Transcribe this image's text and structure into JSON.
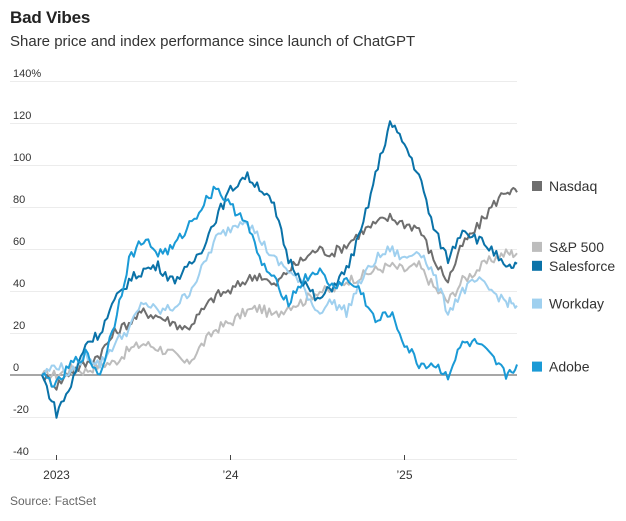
{
  "header": {
    "title": "Bad Vibes",
    "subtitle": "Share price and index performance since launch of ChatGPT"
  },
  "footer": {
    "source": "Source: FactSet"
  },
  "chart_data": {
    "type": "line",
    "title": "Bad Vibes",
    "subtitle": "Share price and index performance since launch of ChatGPT",
    "xlabel": "",
    "ylabel": "",
    "ylim": [
      -40,
      140
    ],
    "yticks": [
      -40,
      -20,
      0,
      20,
      40,
      60,
      80,
      100,
      120,
      140
    ],
    "ytick_labels": [
      "-40",
      "-20",
      "0",
      "20",
      "40",
      "60",
      "80",
      "100",
      "120",
      "140%"
    ],
    "xticks": [
      {
        "label": "2023",
        "month_index": 1
      },
      {
        "label": "’24",
        "month_index": 13
      },
      {
        "label": "’25",
        "month_index": 25
      }
    ],
    "grid": true,
    "legend_position": "right",
    "x": [
      "Dec 2022",
      "Jan 2023",
      "Feb 2023",
      "Mar 2023",
      "Apr 2023",
      "May 2023",
      "Jun 2023",
      "Jul 2023",
      "Aug 2023",
      "Sep 2023",
      "Oct 2023",
      "Nov 2023",
      "Dec 2023",
      "Jan 2024",
      "Feb 2024",
      "Mar 2024",
      "Apr 2024",
      "May 2024",
      "Jun 2024",
      "Jul 2024",
      "Aug 2024",
      "Sep 2024",
      "Oct 2024",
      "Nov 2024",
      "Dec 2024",
      "Jan 2025",
      "Feb 2025",
      "Mar 2025",
      "Apr 2025",
      "May 2025",
      "Jun 2025",
      "Jul 2025",
      "Aug 2025",
      "Aug 2025 (latest)"
    ],
    "series": [
      {
        "name": "Nasdaq",
        "color": "#6e6e6e",
        "values": [
          0,
          -5,
          2,
          5,
          10,
          20,
          25,
          30,
          28,
          25,
          22,
          30,
          38,
          40,
          45,
          48,
          42,
          50,
          55,
          60,
          58,
          62,
          68,
          72,
          75,
          72,
          70,
          55,
          45,
          62,
          70,
          80,
          88,
          87
        ]
      },
      {
        "name": "S&P 500",
        "color": "#bdbdbd",
        "values": [
          0,
          0,
          3,
          2,
          5,
          6,
          12,
          15,
          13,
          10,
          5,
          14,
          22,
          25,
          30,
          32,
          28,
          33,
          35,
          40,
          40,
          45,
          47,
          50,
          52,
          50,
          52,
          42,
          35,
          45,
          50,
          55,
          58,
          58
        ]
      },
      {
        "name": "Salesforce",
        "color": "#0a72a8",
        "values": [
          0,
          -18,
          -5,
          15,
          20,
          35,
          45,
          50,
          52,
          45,
          50,
          60,
          75,
          88,
          95,
          90,
          80,
          55,
          45,
          35,
          42,
          50,
          68,
          95,
          120,
          110,
          95,
          70,
          55,
          70,
          65,
          60,
          50,
          53
        ]
      },
      {
        "name": "Workday",
        "color": "#9fd0ef",
        "values": [
          0,
          5,
          0,
          10,
          5,
          15,
          22,
          35,
          30,
          32,
          38,
          50,
          65,
          70,
          75,
          65,
          55,
          50,
          42,
          30,
          35,
          30,
          45,
          55,
          60,
          55,
          60,
          48,
          30,
          40,
          45,
          40,
          35,
          33
        ]
      },
      {
        "name": "Adobe",
        "color": "#1a9ad6",
        "values": [
          0,
          -5,
          5,
          10,
          0,
          25,
          55,
          65,
          58,
          60,
          70,
          80,
          90,
          80,
          75,
          55,
          45,
          35,
          45,
          50,
          42,
          45,
          40,
          25,
          30,
          15,
          5,
          5,
          0,
          15,
          15,
          8,
          0,
          5
        ]
      }
    ],
    "legend": [
      {
        "name": "Nasdaq",
        "color": "#6e6e6e",
        "anchor_value": 90
      },
      {
        "name": "S&P 500",
        "color": "#bdbdbd",
        "anchor_value": 61
      },
      {
        "name": "Salesforce",
        "color": "#0a72a8",
        "anchor_value": 52
      },
      {
        "name": "Workday",
        "color": "#9fd0ef",
        "anchor_value": 34
      },
      {
        "name": "Adobe",
        "color": "#1a9ad6",
        "anchor_value": 4
      }
    ]
  }
}
